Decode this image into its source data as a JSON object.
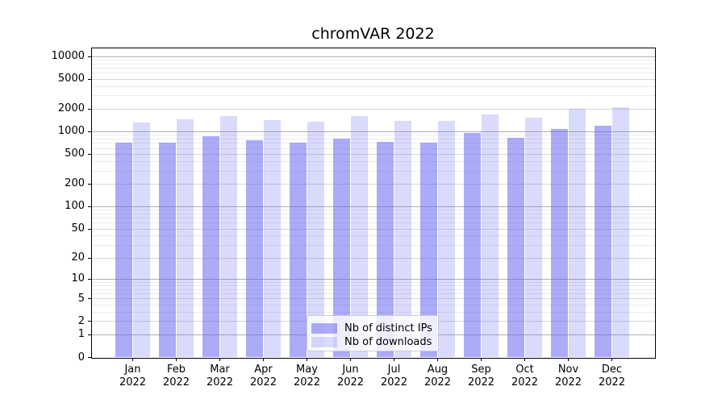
{
  "chart_data": {
    "type": "bar",
    "title": "chromVAR 2022",
    "categories": [
      "Jan 2022",
      "Feb 2022",
      "Mar 2022",
      "Apr 2022",
      "May 2022",
      "Jun 2022",
      "Jul 2022",
      "Aug 2022",
      "Sep 2022",
      "Oct 2022",
      "Nov 2022",
      "Dec 2022"
    ],
    "months": [
      "Jan",
      "Feb",
      "Mar",
      "Apr",
      "May",
      "Jun",
      "Jul",
      "Aug",
      "Sep",
      "Oct",
      "Nov",
      "Dec"
    ],
    "year": "2022",
    "series": [
      {
        "name": "Nb of distinct IPs",
        "color": "rgba(96,96,240,0.53)",
        "color_hex_on_white": "#aaaaf7",
        "values": [
          720,
          720,
          870,
          770,
          710,
          800,
          730,
          710,
          970,
          830,
          1090,
          1200
        ]
      },
      {
        "name": "Nb of downloads",
        "color": "rgba(96,96,240,0.23)",
        "color_hex_on_white": "#dbdbf9",
        "values": [
          1330,
          1450,
          1610,
          1430,
          1370,
          1610,
          1390,
          1400,
          1710,
          1550,
          2010,
          2100
        ]
      }
    ],
    "y_axis": {
      "scale": "log10(value+1)",
      "tick_labels": [
        0,
        1,
        2,
        5,
        10,
        20,
        50,
        100,
        200,
        500,
        1000,
        2000,
        5000,
        10000
      ],
      "range": [
        0,
        13000
      ],
      "grid": true
    },
    "x_axis": {
      "tick_label_format": "two-line month over year"
    },
    "legend": {
      "position": "lower center",
      "frame": true
    }
  },
  "colors": {
    "grid_major": "#b0b0b0",
    "grid_mid": "#d8d8d8",
    "grid_minor": "#ebebeb",
    "axis": "#000000",
    "legend_border": "#cccccc",
    "background": "#ffffff",
    "text": "#000000"
  }
}
